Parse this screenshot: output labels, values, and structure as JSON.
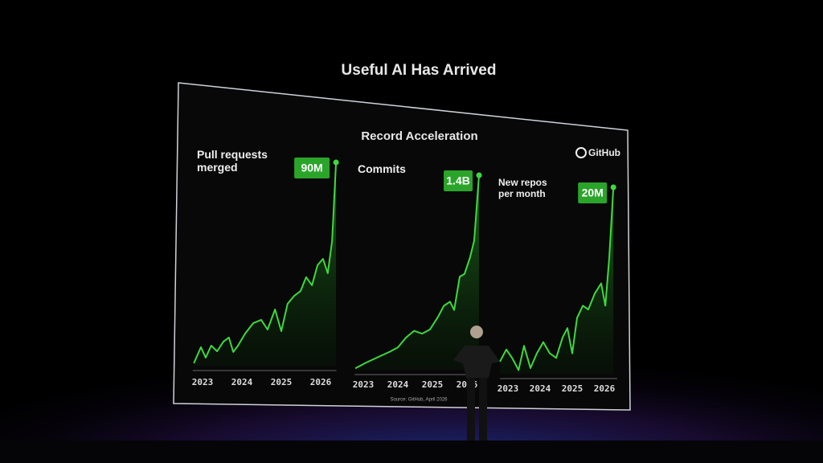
{
  "title": "Useful AI Has Arrived",
  "subtitle": "Record Acceleration",
  "brand": "GitHub",
  "source": "Source: GitHub, April 2026",
  "chart_data": [
    {
      "type": "line",
      "title": "Pull requests merged",
      "color": "#3fd83f",
      "xlim": [
        2022.75,
        2026.4
      ],
      "xticks": [
        2023,
        2024,
        2025,
        2026
      ],
      "ylim": [
        0,
        90
      ],
      "x": [
        2022.78,
        2022.96,
        2023.08,
        2023.22,
        2023.37,
        2023.53,
        2023.67,
        2023.78,
        2023.9,
        2024.08,
        2024.29,
        2024.49,
        2024.65,
        2024.84,
        2025.0,
        2025.16,
        2025.33,
        2025.49,
        2025.63,
        2025.78,
        2025.92,
        2026.06,
        2026.18,
        2026.29,
        2026.39
      ],
      "values": [
        1.1,
        8.2,
        3.6,
        8.9,
        6.4,
        10.7,
        12.5,
        6.1,
        8.9,
        14.2,
        18.9,
        20.3,
        16,
        24.9,
        15.3,
        27.4,
        31,
        33.1,
        39.2,
        35.6,
        44.5,
        47.3,
        40.9,
        55.2,
        90
      ],
      "value_labels": [
        null,
        null,
        null,
        null,
        null,
        null,
        null,
        null,
        null,
        null,
        null,
        null,
        null,
        null,
        null,
        null,
        null,
        null,
        null,
        null,
        null,
        null,
        null,
        null,
        "90M"
      ]
    },
    {
      "type": "line",
      "title": "Commits",
      "color": "#3fd83f",
      "xlim": [
        2022.75,
        2026.4
      ],
      "xticks": [
        2023,
        2024,
        2025,
        2026
      ],
      "ylim": [
        0,
        1.4
      ],
      "x": [
        2022.77,
        2023.07,
        2023.42,
        2023.77,
        2024.0,
        2024.23,
        2024.47,
        2024.7,
        2024.93,
        2025.16,
        2025.33,
        2025.51,
        2025.63,
        2025.79,
        2025.93,
        2026.09,
        2026.21,
        2026.35
      ],
      "values": [
        0.01,
        0.05,
        0.09,
        0.13,
        0.16,
        0.23,
        0.28,
        0.26,
        0.29,
        0.38,
        0.46,
        0.49,
        0.43,
        0.67,
        0.69,
        0.81,
        0.93,
        1.4
      ],
      "value_labels": [
        null,
        null,
        null,
        null,
        null,
        null,
        null,
        null,
        null,
        null,
        null,
        null,
        null,
        null,
        null,
        null,
        null,
        "1.4B"
      ]
    },
    {
      "type": "line",
      "title": "New repos per month",
      "color": "#3fd83f",
      "xlim": [
        2022.75,
        2026.4
      ],
      "xticks": [
        2023,
        2024,
        2025,
        2026
      ],
      "ylim": [
        0,
        20
      ],
      "x": [
        2022.75,
        2022.95,
        2023.13,
        2023.33,
        2023.5,
        2023.7,
        2023.9,
        2024.1,
        2024.3,
        2024.5,
        2024.7,
        2024.85,
        2025.0,
        2025.15,
        2025.33,
        2025.5,
        2025.7,
        2025.9,
        2026.03,
        2026.15,
        2026.28
      ],
      "values": [
        1.3,
        2.6,
        1.7,
        0.4,
        3.0,
        0.6,
        2.2,
        3.4,
        2.2,
        1.7,
        3.9,
        4.9,
        2.2,
        6.0,
        7.3,
        6.9,
        8.6,
        9.7,
        7.3,
        12.4,
        20
      ],
      "value_labels": [
        null,
        null,
        null,
        null,
        null,
        null,
        null,
        null,
        null,
        null,
        null,
        null,
        null,
        null,
        null,
        null,
        null,
        null,
        null,
        null,
        "20M"
      ]
    }
  ]
}
